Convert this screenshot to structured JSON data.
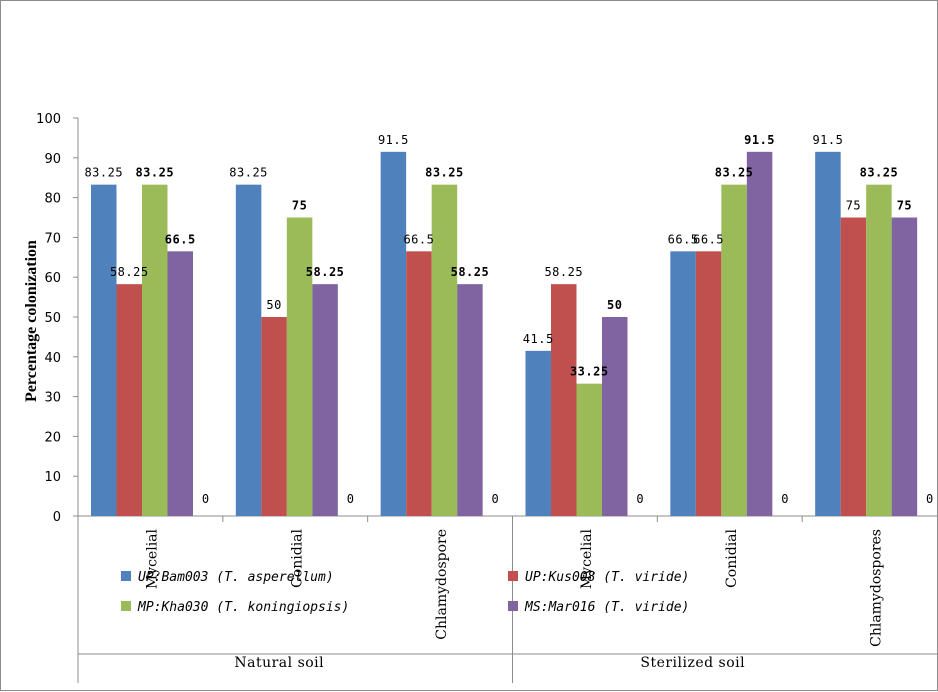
{
  "chart_data": {
    "type": "bar",
    "title": "",
    "ylabel": "Percentage colonization",
    "ylim": [
      0,
      100
    ],
    "yticks": [
      "0",
      "10",
      "20",
      "30",
      "40",
      "50",
      "60",
      "70",
      "80",
      "90",
      "100"
    ],
    "groups": [
      {
        "label": "Natural soil",
        "categories": [
          "Mycelial",
          "Conidial",
          "Chlamydospore"
        ]
      },
      {
        "label": "Sterilized soil",
        "categories": [
          "Mycelial",
          "Conidial",
          "Chlamydospores"
        ]
      }
    ],
    "zero_label": "0",
    "series": [
      {
        "name": "UP:Bam003 (T. asperellum)",
        "color": "#4f81bd",
        "values": [
          83.25,
          83.25,
          91.5,
          41.5,
          66.5,
          91.5
        ],
        "labels": [
          "83.25",
          "83.25",
          "91.5",
          "41.5",
          "66.5",
          "91.5"
        ]
      },
      {
        "name": "UP:Kus008 (T. viride)",
        "color": "#c0504d",
        "values": [
          58.25,
          50,
          66.5,
          58.25,
          66.5,
          75
        ],
        "labels": [
          "58.25",
          "50",
          "66.5",
          "58.25",
          "66.5",
          "75"
        ]
      },
      {
        "name": "MP:Kha030 (T. koningiopsis)",
        "color": "#9bbb59",
        "values": [
          83.25,
          75,
          83.25,
          33.25,
          83.25,
          83.25
        ],
        "labels": [
          "83.25",
          "75",
          "83.25",
          "33.25",
          "83.25",
          "83.25"
        ]
      },
      {
        "name": "MS:Mar016 (T. viride)",
        "color": "#8064a2",
        "values": [
          66.5,
          58.25,
          58.25,
          50,
          91.5,
          75
        ],
        "labels": [
          "66.5",
          "58.25",
          "58.25",
          "50",
          "91.5",
          "75"
        ]
      }
    ],
    "legend_position": "bottom",
    "grid": false
  }
}
